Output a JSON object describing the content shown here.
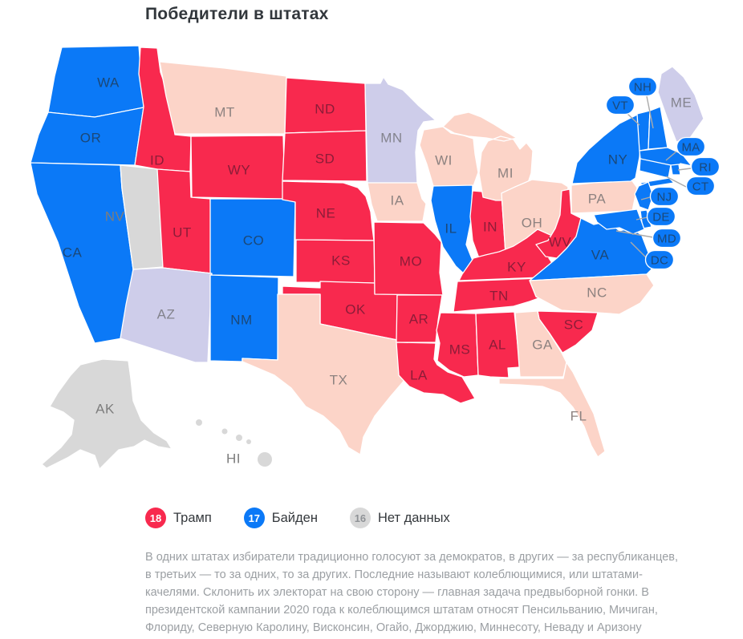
{
  "title": "Победители в штатах",
  "colors": {
    "trump": "#f8294e",
    "biden": "#0b79f7",
    "lean_trump": "#fcd4c8",
    "lean_biden": "#cecdea",
    "none": "#d8d8d8",
    "label_trump": "#8c1c38",
    "label_biden": "#1b4878",
    "label_lean_trump": "#8d8280",
    "label_lean_biden": "#83838d",
    "label_none": "#7d7d7d",
    "legend_none_number": "#8f9296",
    "connector": "#aaaaaa"
  },
  "legend": [
    {
      "count": "18",
      "label": "Трамп",
      "category": "trump"
    },
    {
      "count": "17",
      "label": "Байден",
      "category": "biden"
    },
    {
      "count": "16",
      "label": "Нет данных",
      "category": "none"
    }
  ],
  "states": [
    {
      "code": "WA",
      "label": "WA",
      "category": "biden"
    },
    {
      "code": "OR",
      "label": "OR",
      "category": "biden"
    },
    {
      "code": "CA",
      "label": "CA",
      "category": "biden"
    },
    {
      "code": "NV",
      "label": "NV",
      "category": "none"
    },
    {
      "code": "ID",
      "label": "ID",
      "category": "trump"
    },
    {
      "code": "MT",
      "label": "MT",
      "category": "lean_trump"
    },
    {
      "code": "WY",
      "label": "WY",
      "category": "trump"
    },
    {
      "code": "UT",
      "label": "UT",
      "category": "trump"
    },
    {
      "code": "CO",
      "label": "CO",
      "category": "biden"
    },
    {
      "code": "AZ",
      "label": "AZ",
      "category": "lean_biden"
    },
    {
      "code": "NM",
      "label": "NM",
      "category": "biden"
    },
    {
      "code": "ND",
      "label": "ND",
      "category": "trump"
    },
    {
      "code": "SD",
      "label": "SD",
      "category": "trump"
    },
    {
      "code": "NE",
      "label": "NE",
      "category": "trump"
    },
    {
      "code": "KS",
      "label": "KS",
      "category": "trump"
    },
    {
      "code": "OK",
      "label": "OK",
      "category": "trump"
    },
    {
      "code": "TX",
      "label": "TX",
      "category": "lean_trump"
    },
    {
      "code": "MN",
      "label": "MN",
      "category": "lean_biden"
    },
    {
      "code": "IA",
      "label": "IA",
      "category": "lean_trump"
    },
    {
      "code": "WI",
      "label": "WI",
      "category": "lean_trump"
    },
    {
      "code": "IL",
      "label": "IL",
      "category": "biden"
    },
    {
      "code": "MO",
      "label": "MO",
      "category": "trump"
    },
    {
      "code": "AR",
      "label": "AR",
      "category": "trump"
    },
    {
      "code": "LA",
      "label": "LA",
      "category": "trump"
    },
    {
      "code": "MS",
      "label": "MS",
      "category": "trump"
    },
    {
      "code": "AL",
      "label": "AL",
      "category": "trump"
    },
    {
      "code": "IN",
      "label": "IN",
      "category": "trump"
    },
    {
      "code": "MI",
      "label": "MI",
      "category": "lean_trump"
    },
    {
      "code": "OH",
      "label": "OH",
      "category": "lean_trump"
    },
    {
      "code": "KY",
      "label": "KY",
      "category": "trump"
    },
    {
      "code": "TN",
      "label": "TN",
      "category": "trump"
    },
    {
      "code": "WV",
      "label": "WV",
      "category": "trump"
    },
    {
      "code": "PA",
      "label": "PA",
      "category": "lean_trump"
    },
    {
      "code": "NY",
      "label": "NY",
      "category": "biden"
    },
    {
      "code": "VA",
      "label": "VA",
      "category": "biden"
    },
    {
      "code": "NC",
      "label": "NC",
      "category": "lean_trump"
    },
    {
      "code": "SC",
      "label": "SC",
      "category": "trump"
    },
    {
      "code": "GA",
      "label": "GA",
      "category": "lean_trump"
    },
    {
      "code": "FL",
      "label": "FL",
      "category": "lean_trump"
    },
    {
      "code": "ME",
      "label": "ME",
      "category": "lean_biden"
    },
    {
      "code": "VT",
      "label": "VT",
      "category": "biden"
    },
    {
      "code": "NH",
      "label": "NH",
      "category": "biden"
    },
    {
      "code": "MA",
      "label": "MA",
      "category": "biden"
    },
    {
      "code": "RI",
      "label": "RI",
      "category": "biden"
    },
    {
      "code": "CT",
      "label": "CT",
      "category": "biden"
    },
    {
      "code": "NJ",
      "label": "NJ",
      "category": "biden"
    },
    {
      "code": "DE",
      "label": "DE",
      "category": "biden"
    },
    {
      "code": "MD",
      "label": "MD",
      "category": "biden"
    },
    {
      "code": "DC",
      "label": "DC",
      "category": "biden"
    },
    {
      "code": "AK",
      "label": "AK",
      "category": "none"
    },
    {
      "code": "HI",
      "label": "HI",
      "category": "none"
    }
  ],
  "description": "В одних штатах избиратели традиционно голосуют за демократов, в других — за республиканцев, в третьих — то за одних, то за других. Последние называют колеблющимися, или штатами-качелями. Склонить их электорат на свою сторону — главная задача предвыборной гонки. В президентской кампании 2020 года к колеблющимся штатам относят Пенсильванию, Мичиган, Флориду, Северную Каролину, Висконсин, Огайо, Джорджию, Миннесоту, Неваду и Аризону"
}
